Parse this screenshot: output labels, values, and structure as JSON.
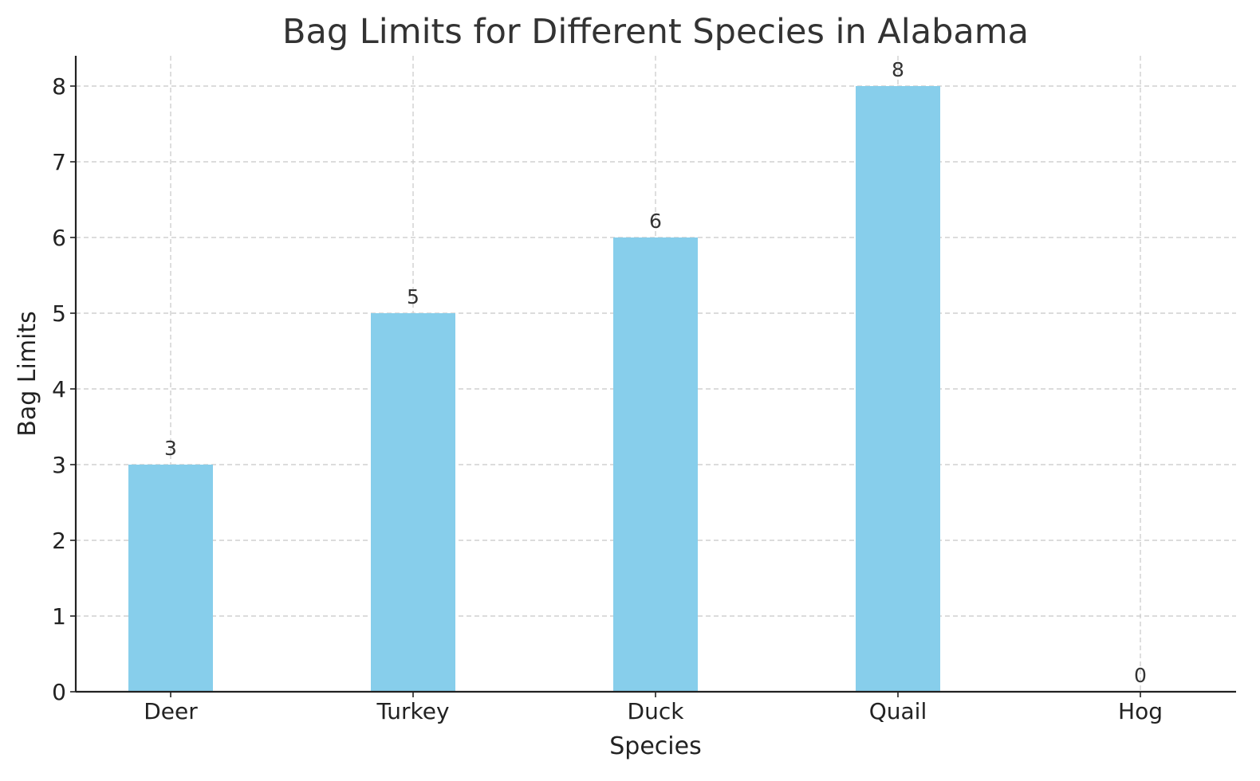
{
  "chart_data": {
    "type": "bar",
    "title": "Bag Limits for Different Species in Alabama",
    "xlabel": "Species",
    "ylabel": "Bag Limits",
    "categories": [
      "Deer",
      "Turkey",
      "Duck",
      "Quail",
      "Hog"
    ],
    "values": [
      3,
      5,
      6,
      8,
      0
    ],
    "data_labels": [
      "3",
      "5",
      "6",
      "8",
      "0"
    ],
    "y_ticks": [
      0,
      1,
      2,
      3,
      4,
      5,
      6,
      7,
      8
    ],
    "ylim": [
      0,
      8.4
    ],
    "grid": true,
    "legend": "none",
    "bar_color": "#87ceeb"
  }
}
